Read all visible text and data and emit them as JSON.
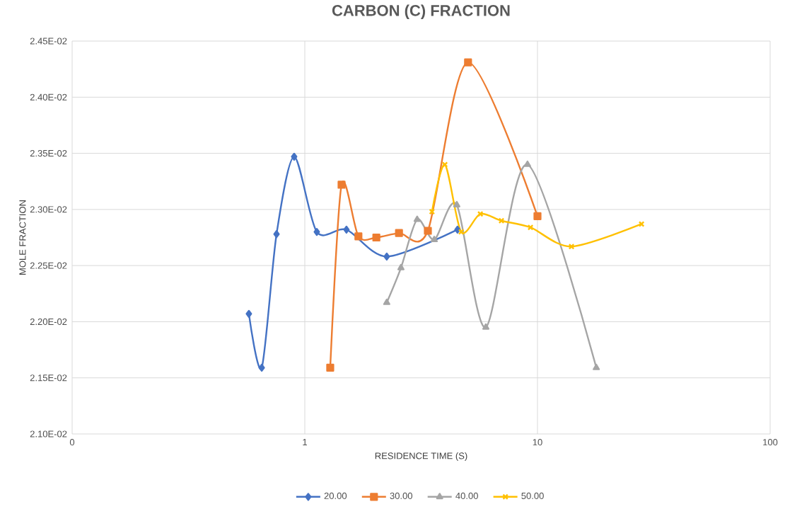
{
  "chart_data": {
    "type": "line",
    "title": "CARBON (C) FRACTION",
    "xlabel": "RESIDENCE TIME (S)",
    "ylabel": "MOLE FRACTION",
    "log": "x",
    "grid": true,
    "legend": "bottom",
    "line_style": "solid",
    "xlim": [
      0.1,
      100
    ],
    "xticks": [
      {
        "value": 0.1,
        "label": "0"
      },
      1,
      10,
      100
    ],
    "ylim": [
      0.021,
      0.0245
    ],
    "yticks": [
      {
        "value": 0.021,
        "label": "2.10E-02"
      },
      {
        "value": 0.0215,
        "label": "2.15E-02"
      },
      {
        "value": 0.022,
        "label": "2.20E-02"
      },
      {
        "value": 0.0225,
        "label": "2.25E-02"
      },
      {
        "value": 0.023,
        "label": "2.30E-02"
      },
      {
        "value": 0.0235,
        "label": "2.35E-02"
      },
      {
        "value": 0.024,
        "label": "2.40E-02"
      },
      {
        "value": 0.0245,
        "label": "2.45E-02"
      }
    ],
    "series": [
      {
        "name": "20.00",
        "color": "#4472c4",
        "marker": "diamond",
        "x": [
          0.575,
          0.653,
          0.756,
          0.9,
          1.126,
          1.51,
          2.25,
          4.53
        ],
        "values": [
          0.02207,
          0.02159,
          0.02278,
          0.02347,
          0.0228,
          0.02282,
          0.02258,
          0.02282
        ]
      },
      {
        "name": "30.00",
        "color": "#ed7d31",
        "marker": "square",
        "x": [
          1.286,
          1.439,
          1.7,
          2.03,
          2.54,
          3.38,
          5.03,
          10.0
        ],
        "values": [
          0.02159,
          0.02322,
          0.02276,
          0.02275,
          0.02279,
          0.02281,
          0.02431,
          0.02294
        ]
      },
      {
        "name": "40.00",
        "color": "#a5a5a5",
        "marker": "triangle",
        "x": [
          2.25,
          2.59,
          3.04,
          3.6,
          4.5,
          6.0,
          9.06,
          17.9
        ],
        "values": [
          0.02217,
          0.02248,
          0.02291,
          0.02273,
          0.02304,
          0.02195,
          0.0234,
          0.02159
        ]
      },
      {
        "name": "50.00",
        "color": "#ffc000",
        "marker": "cross",
        "x": [
          3.52,
          4.0,
          4.7,
          5.68,
          7.0,
          9.33,
          14.0,
          28.0
        ],
        "values": [
          0.02298,
          0.0234,
          0.0228,
          0.02296,
          0.0229,
          0.02284,
          0.02267,
          0.02287
        ]
      }
    ]
  }
}
